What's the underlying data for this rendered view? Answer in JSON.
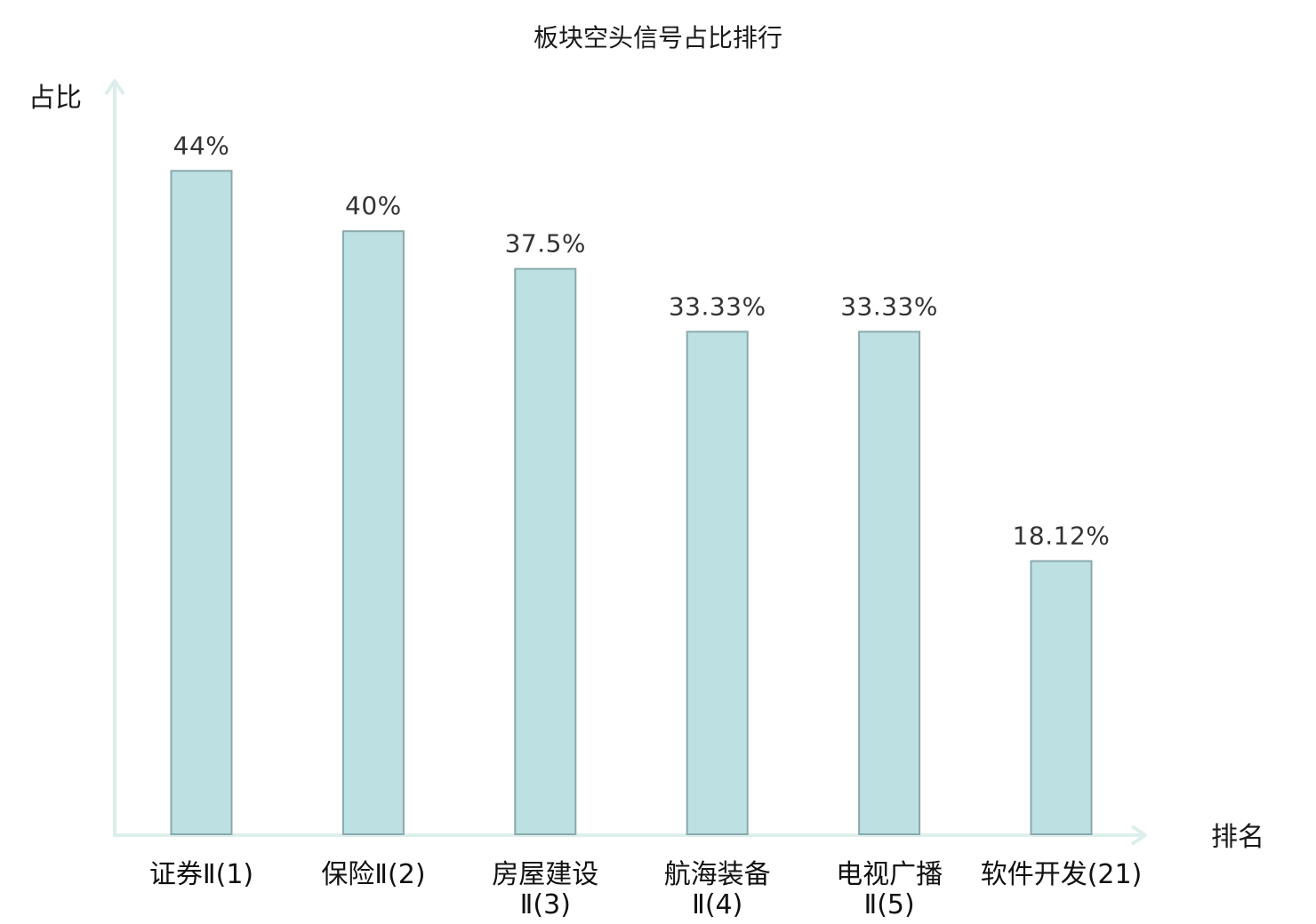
{
  "chart_data": {
    "type": "bar",
    "title": "板块空头信号占比排行",
    "ylabel": "占比",
    "xlabel": "排名",
    "ylim": [
      0,
      50
    ],
    "grid": false,
    "categories": [
      {
        "lines": [
          "证券Ⅱ(1)"
        ],
        "highlight": false
      },
      {
        "lines": [
          "保险Ⅱ(2)"
        ],
        "highlight": false
      },
      {
        "lines": [
          "房屋建设",
          "Ⅱ(3)"
        ],
        "highlight": false
      },
      {
        "lines": [
          "航海装备",
          "Ⅱ(4)"
        ],
        "highlight": false
      },
      {
        "lines": [
          "电视广播",
          "Ⅱ(5)"
        ],
        "highlight": false
      },
      {
        "lines": [
          "软件开发(21)"
        ],
        "highlight": true
      }
    ],
    "values": [
      44,
      40,
      37.5,
      33.33,
      33.33,
      18.12
    ],
    "value_labels": [
      "44%",
      "40%",
      "37.5%",
      "33.33%",
      "33.33%",
      "18.12%"
    ],
    "colors": {
      "bar_fill": "#bde0e3",
      "bar_stroke": "#8aa9ab",
      "axis": "#dcefec",
      "highlight_label": "#e02020",
      "label": "#111111"
    }
  }
}
